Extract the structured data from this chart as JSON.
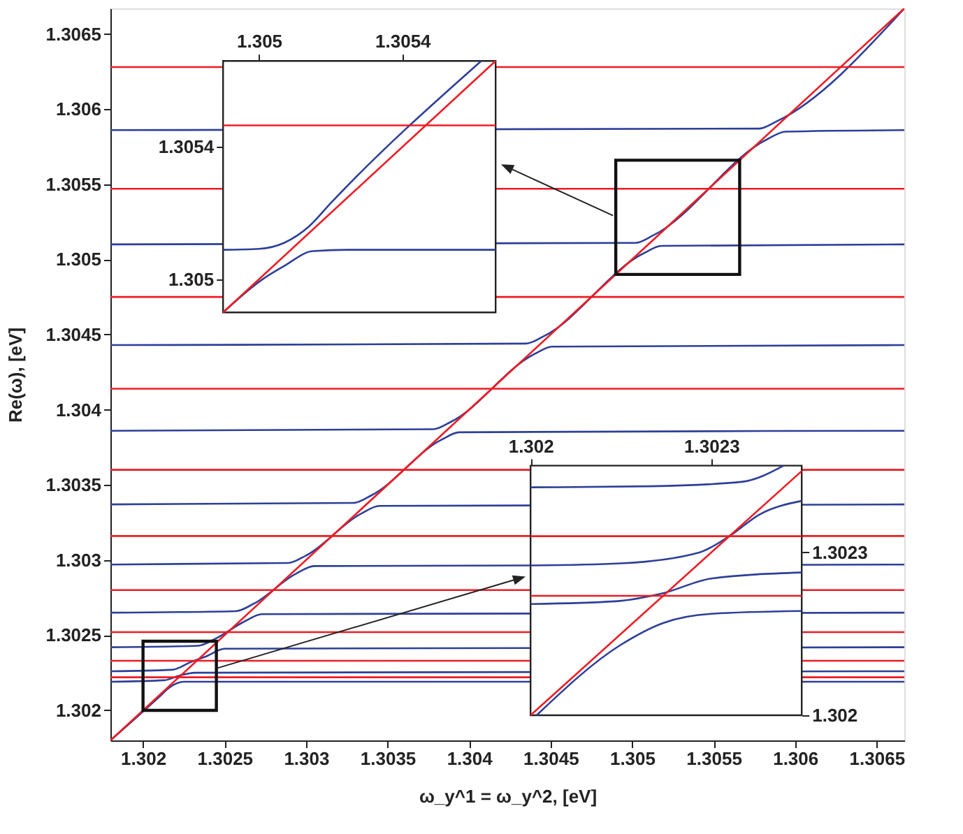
{
  "chart_data": [
    {
      "type": "line",
      "xlabel": "ω_y^1 = ω_y^2, [eV]",
      "ylabel": "Re(ω), [eV]",
      "xlim": [
        1.3018,
        1.30667
      ],
      "ylim": [
        1.3018,
        1.30667
      ],
      "xticks": [
        1.302,
        1.3025,
        1.303,
        1.3035,
        1.304,
        1.3045,
        1.305,
        1.3055,
        1.306,
        1.3065
      ],
      "yticks": [
        1.302,
        1.3025,
        1.303,
        1.3035,
        1.304,
        1.3045,
        1.305,
        1.3055,
        1.306,
        1.3065
      ],
      "series": [
        {
          "color": "#2e3f98",
          "x": [
            1.3018,
            1.3021,
            1.30216,
            1.30225,
            1.30667
          ],
          "values": [
            1.3018,
            1.30209,
            1.30215,
            1.30219,
            1.30219
          ]
        },
        {
          "color": "#2e3f98",
          "x": [
            1.3018,
            1.30213,
            1.30222,
            1.30232,
            1.30667
          ],
          "values": [
            1.30219,
            1.3022,
            1.30223,
            1.30225,
            1.30226
          ]
        },
        {
          "color": "#2e3f98",
          "x": [
            1.3018,
            1.30218,
            1.30229,
            1.30239,
            1.3025,
            1.30667
          ],
          "values": [
            1.30226,
            1.30227,
            1.30232,
            1.30236,
            1.30241,
            1.30242
          ]
        },
        {
          "color": "#2e3f98",
          "x": [
            1.3018,
            1.30234,
            1.30245,
            1.30262,
            1.30273,
            1.30667
          ],
          "values": [
            1.30242,
            1.30243,
            1.30248,
            1.30259,
            1.30264,
            1.30265
          ]
        },
        {
          "color": "#2e3f98",
          "x": [
            1.3018,
            1.30257,
            1.30268,
            1.30294,
            1.30305,
            1.30667
          ],
          "values": [
            1.30265,
            1.30266,
            1.30271,
            1.30291,
            1.30296,
            1.30297
          ]
        },
        {
          "color": "#2e3f98",
          "x": [
            1.3018,
            1.30289,
            1.303,
            1.30334,
            1.30345,
            1.30667
          ],
          "values": [
            1.30297,
            1.30298,
            1.30303,
            1.30331,
            1.30336,
            1.30337
          ]
        },
        {
          "color": "#2e3f98",
          "x": [
            1.3018,
            1.30329,
            1.3034,
            1.30383,
            1.30394,
            1.30667
          ],
          "values": [
            1.30337,
            1.30338,
            1.30343,
            1.3038,
            1.30385,
            1.30386
          ]
        },
        {
          "color": "#2e3f98",
          "x": [
            1.3018,
            1.30378,
            1.30389,
            1.3044,
            1.30451,
            1.30667
          ],
          "values": [
            1.30386,
            1.30387,
            1.30392,
            1.30437,
            1.30442,
            1.30443
          ]
        },
        {
          "color": "#2e3f98",
          "x": [
            1.3018,
            1.30435,
            1.30446,
            1.30507,
            1.30518,
            1.30667
          ],
          "values": [
            1.30443,
            1.30444,
            1.30449,
            1.30504,
            1.30509,
            1.3051
          ]
        },
        {
          "color": "#2e3f98",
          "x": [
            1.3018,
            1.30502,
            1.30513,
            1.30583,
            1.30594,
            1.30667
          ],
          "values": [
            1.3051,
            1.30511,
            1.30516,
            1.3058,
            1.30585,
            1.30586
          ]
        },
        {
          "color": "#2e3f98",
          "x": [
            1.3018,
            1.30578,
            1.30589,
            1.30667
          ],
          "values": [
            1.30586,
            1.30587,
            1.30592,
            1.30667
          ]
        },
        {
          "color": "#ed1c24",
          "x": [
            1.3018,
            1.30667
          ],
          "values": [
            1.30628,
            1.30628
          ]
        },
        {
          "color": "#ed1c24",
          "x": [
            1.3018,
            1.30667
          ],
          "values": [
            1.30547,
            1.30547
          ]
        },
        {
          "color": "#ed1c24",
          "x": [
            1.3018,
            1.30667
          ],
          "values": [
            1.30475,
            1.30475
          ]
        },
        {
          "color": "#ed1c24",
          "x": [
            1.3018,
            1.30667
          ],
          "values": [
            1.30414,
            1.30414
          ]
        },
        {
          "color": "#ed1c24",
          "x": [
            1.3018,
            1.30667
          ],
          "values": [
            1.3036,
            1.3036
          ]
        },
        {
          "color": "#ed1c24",
          "x": [
            1.3018,
            1.30667
          ],
          "values": [
            1.30316,
            1.30316
          ]
        },
        {
          "color": "#ed1c24",
          "x": [
            1.3018,
            1.30667
          ],
          "values": [
            1.3028,
            1.3028
          ]
        },
        {
          "color": "#ed1c24",
          "x": [
            1.3018,
            1.30667
          ],
          "values": [
            1.30252,
            1.30252
          ]
        },
        {
          "color": "#ed1c24",
          "x": [
            1.3018,
            1.30667
          ],
          "values": [
            1.30233,
            1.30233
          ]
        },
        {
          "color": "#ed1c24",
          "x": [
            1.3018,
            1.30667
          ],
          "values": [
            1.30222,
            1.30222
          ]
        },
        {
          "color": "#ed1c24",
          "x": [
            1.3018,
            1.30667
          ],
          "values": [
            1.3018,
            1.30667
          ]
        }
      ]
    },
    {
      "type": "line",
      "xlim": [
        1.3049,
        1.30566
      ],
      "ylim": [
        1.3049,
        1.30566
      ],
      "xticks": [
        1.305,
        1.3054
      ],
      "yticks": [
        1.305,
        1.3054
      ],
      "series": [
        {
          "color": "#2e3f98",
          "x": [
            1.3049,
            1.30501,
            1.30507,
            1.30515,
            1.30525,
            1.30566
          ],
          "values": [
            1.3049,
            1.305,
            1.30504,
            1.305085,
            1.305089,
            1.305089
          ]
        },
        {
          "color": "#2e3f98",
          "x": [
            1.3049,
            1.305,
            1.30507,
            1.30514,
            1.3052,
            1.30562
          ],
          "values": [
            1.305089,
            1.305092,
            1.30511,
            1.30516,
            1.30523,
            1.30566
          ]
        },
        {
          "color": "#ed1c24",
          "x": [
            1.3049,
            1.30566
          ],
          "values": [
            1.305465,
            1.305465
          ]
        },
        {
          "color": "#ed1c24",
          "x": [
            1.3049,
            1.30566
          ],
          "values": [
            1.3049,
            1.30566
          ]
        }
      ]
    },
    {
      "type": "line",
      "xlim": [
        1.302,
        1.30245
      ],
      "ylim": [
        1.302,
        1.30246
      ],
      "xticks": [
        1.302,
        1.3023
      ],
      "yticks": [
        1.302,
        1.3023
      ],
      "series": [
        {
          "color": "#2e3f98",
          "x": [
            1.302,
            1.3022,
            1.30235,
            1.30242
          ],
          "values": [
            1.30242,
            1.302422,
            1.30243,
            1.30246
          ]
        },
        {
          "color": "#2e3f98",
          "x": [
            1.302,
            1.30215,
            1.30228,
            1.30233,
            1.30238,
            1.30245
          ],
          "values": [
            1.302276,
            1.30228,
            1.3023,
            1.30233,
            1.30237,
            1.302395
          ]
        },
        {
          "color": "#2e3f98",
          "x": [
            1.302,
            1.30214,
            1.30222,
            1.3023,
            1.30245
          ],
          "values": [
            1.302205,
            1.30221,
            1.302225,
            1.302252,
            1.302263
          ]
        },
        {
          "color": "#2e3f98",
          "x": [
            1.30201,
            1.30215,
            1.30222,
            1.3023,
            1.30245
          ],
          "values": [
            1.302,
            1.30213,
            1.30217,
            1.302187,
            1.302192
          ]
        },
        {
          "color": "#ed1c24",
          "x": [
            1.302,
            1.30245
          ],
          "values": [
            1.30233,
            1.30233
          ]
        },
        {
          "color": "#ed1c24",
          "x": [
            1.302,
            1.30245
          ],
          "values": [
            1.30222,
            1.30222
          ]
        },
        {
          "color": "#ed1c24",
          "x": [
            1.302,
            1.30245
          ],
          "values": [
            1.302,
            1.30245
          ]
        }
      ]
    }
  ]
}
